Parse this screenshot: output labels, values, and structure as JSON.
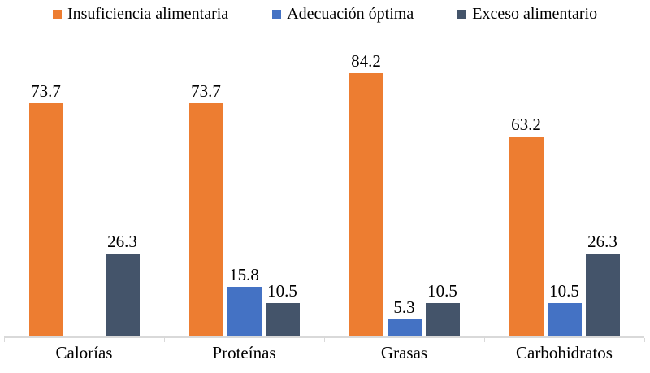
{
  "page": {
    "background": "#ffffff",
    "text_color": "#000000",
    "axis_line_color": "#d9d9d9"
  },
  "legend": {
    "position": "top",
    "items": [
      {
        "label": "Insuficiencia alimentaria",
        "color": "#ED7D31"
      },
      {
        "label": "Adecuación óptima",
        "color": "#4472C4"
      },
      {
        "label": "Exceso alimentario",
        "color": "#44546A"
      }
    ]
  },
  "chart_data": {
    "type": "bar",
    "title": "",
    "xlabel": "",
    "ylabel": "",
    "categories": [
      "Calorías",
      "Proteínas",
      "Grasas",
      "Carbohidratos"
    ],
    "series": [
      {
        "name": "Insuficiencia alimentaria",
        "color": "#ED7D31",
        "values": [
          73.7,
          73.7,
          84.2,
          63.2
        ],
        "labels": [
          "73.7",
          "73.7",
          "84.2",
          "63.2"
        ]
      },
      {
        "name": "Adecuación óptima",
        "color": "#4472C4",
        "values": [
          0,
          15.8,
          5.3,
          10.5
        ],
        "labels": [
          "",
          "15.8",
          "5.3",
          "10.5"
        ]
      },
      {
        "name": "Exceso alimentario",
        "color": "#44546A",
        "values": [
          26.3,
          10.5,
          10.5,
          26.3
        ],
        "labels": [
          "26.3",
          "10.5",
          "10.5",
          "26.3"
        ]
      }
    ],
    "ylim": [
      0,
      90
    ],
    "y_axis_visible": false,
    "grid": false,
    "data_labels": true,
    "legend_position": "top"
  }
}
